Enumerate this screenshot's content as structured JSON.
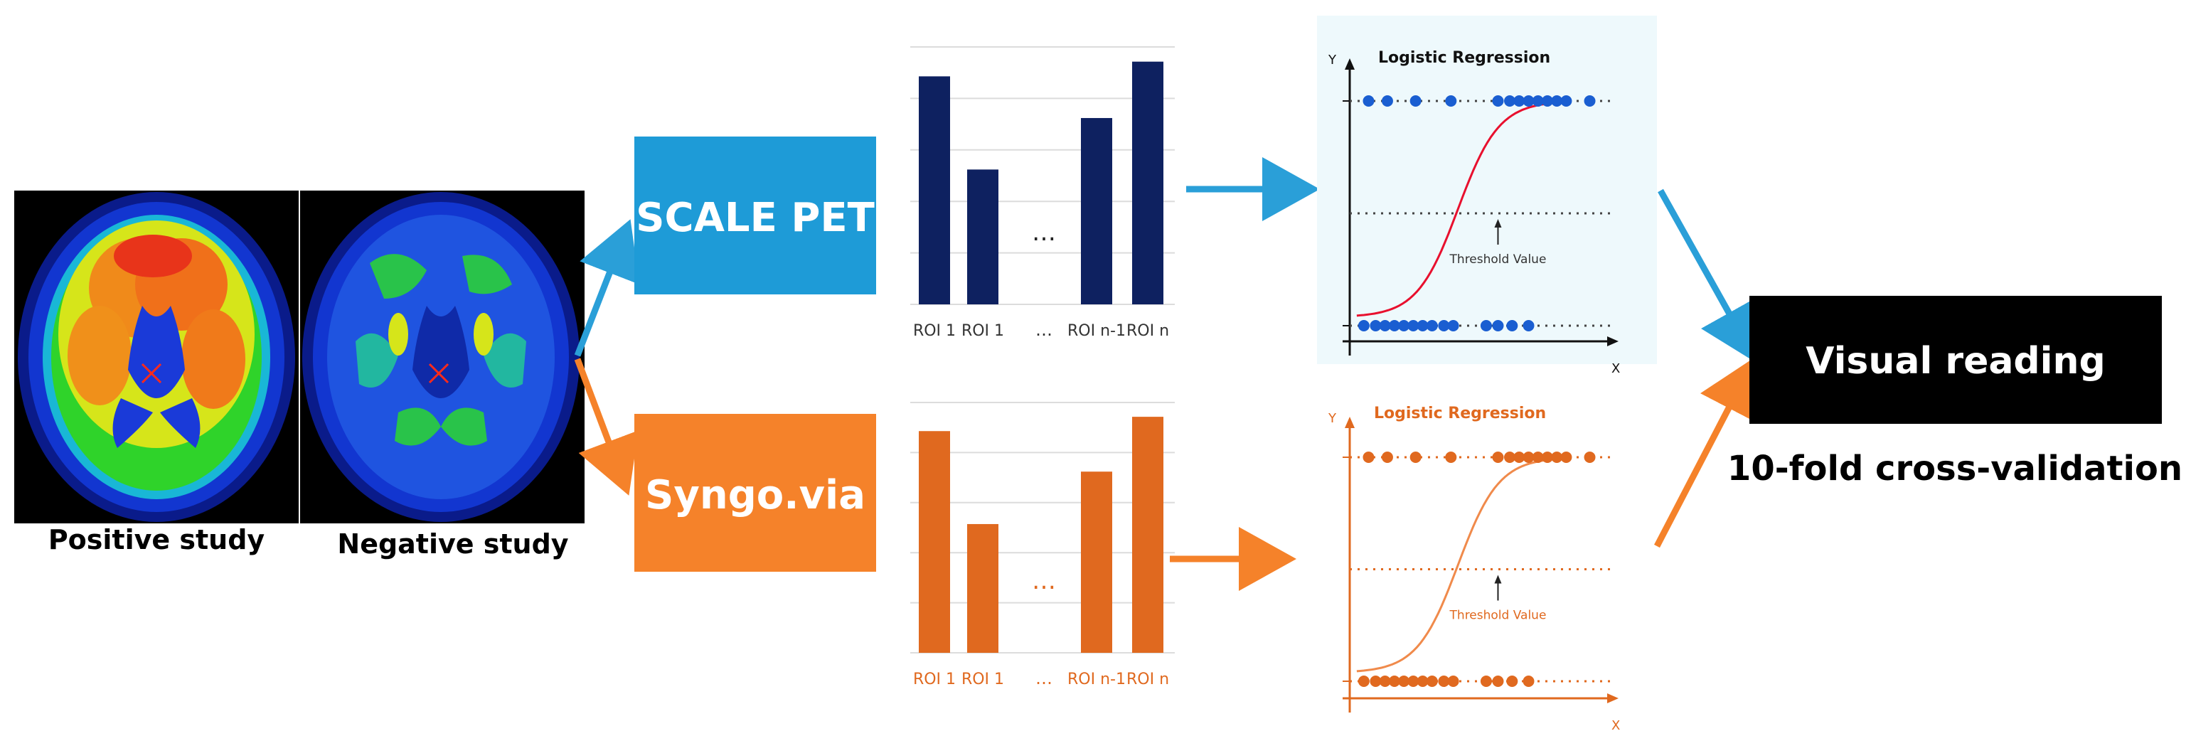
{
  "brain_images": [
    {
      "caption": "Positive study"
    },
    {
      "caption": "Negative study"
    }
  ],
  "methods": [
    {
      "label": "SCALE PET",
      "color": "#1e9bd7"
    },
    {
      "label": "Syngo.via",
      "color": "#f5822a"
    }
  ],
  "colors": {
    "blue_arrow": "#2a9fd8",
    "orange_arrow": "#f5822a",
    "navy_bar": "#0e2160",
    "orange_bar": "#e0691f",
    "blue_dot": "#1a5ed1",
    "red_curve": "#e8102e",
    "orange_curve": "#f08a4b",
    "panel_blue": "#eef9fc",
    "black_box": "#000000"
  },
  "chart_data": [
    {
      "type": "bar",
      "categories": [
        "ROI 1",
        "ROI 1",
        "ROI n-1",
        "ROI n"
      ],
      "values": [
        0.93,
        0.55,
        0.76,
        0.99
      ],
      "ylim": [
        0,
        1.05
      ],
      "ellipsis": "…",
      "color": "#0e2160",
      "label_color": "#333333"
    },
    {
      "type": "bar",
      "categories": [
        "ROI 1",
        "ROI 1",
        "ROI n-1",
        "ROI n"
      ],
      "values": [
        0.93,
        0.54,
        0.76,
        0.99
      ],
      "ylim": [
        0,
        1.05
      ],
      "ellipsis": "…",
      "color": "#e0691f",
      "label_color": "#e0691f"
    },
    {
      "type": "scatter",
      "title": "Logistic Regression",
      "xlabel": "X",
      "ylabel": "Y",
      "annotation": "Threshold Value",
      "threshold": 0.5,
      "xlim": [
        0,
        10
      ],
      "ylim": [
        0,
        1
      ],
      "points_top_x": [
        0.8,
        1.6,
        2.8,
        4.3,
        6.3,
        6.8,
        7.2,
        7.6,
        8.0,
        8.4,
        8.8,
        9.2,
        10.2
      ],
      "points_bottom_x": [
        0.6,
        1.1,
        1.5,
        1.9,
        2.3,
        2.7,
        3.1,
        3.5,
        4.0,
        4.4,
        5.8,
        6.3,
        6.9,
        7.6
      ],
      "color": "#1a5ed1",
      "curve_color": "#e8102e"
    },
    {
      "type": "scatter",
      "title": "Logistic Regression",
      "xlabel": "X",
      "ylabel": "Y",
      "annotation": "Threshold Value",
      "threshold": 0.5,
      "xlim": [
        0,
        10
      ],
      "ylim": [
        0,
        1
      ],
      "points_top_x": [
        0.8,
        1.6,
        2.8,
        4.3,
        6.3,
        6.8,
        7.2,
        7.6,
        8.0,
        8.4,
        8.8,
        9.2,
        10.2
      ],
      "points_bottom_x": [
        0.6,
        1.1,
        1.5,
        1.9,
        2.3,
        2.7,
        3.1,
        3.5,
        4.0,
        4.4,
        5.8,
        6.3,
        6.9,
        7.6
      ],
      "color": "#e0691f",
      "curve_color": "#f08a4b"
    }
  ],
  "output": {
    "box_label": "Visual reading",
    "subtitle": "10-fold cross-validation"
  }
}
